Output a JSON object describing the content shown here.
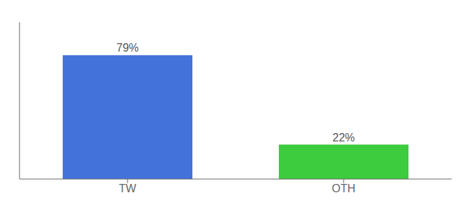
{
  "chart_data": {
    "type": "bar",
    "categories": [
      "TW",
      "OTH"
    ],
    "values": [
      79,
      22
    ],
    "value_labels": [
      "79%",
      "22%"
    ],
    "colors": [
      "#4472db",
      "#3dcc3d"
    ],
    "ylim": [
      0,
      100
    ],
    "data_labels": true,
    "tick_labels": "x",
    "grid": false
  }
}
